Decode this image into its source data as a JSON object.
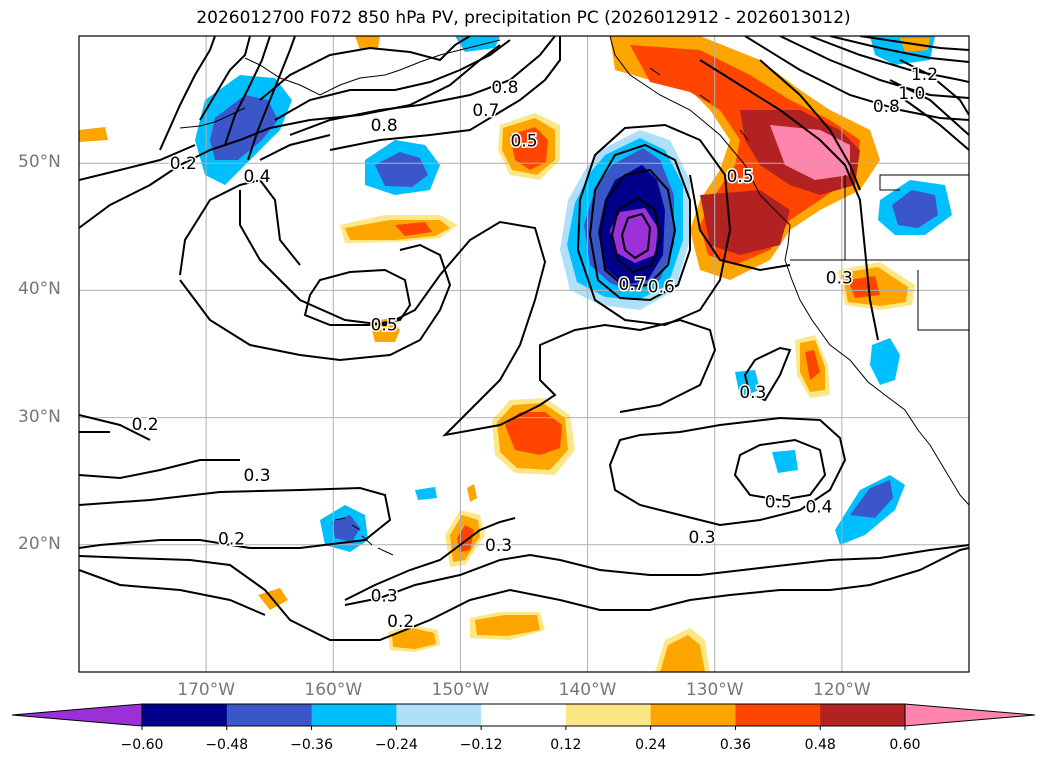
{
  "title": "2026012700 F072 850 hPa PV, precipitation PC (2026012912 - 2026013012)",
  "map": {
    "lon_range": [
      -180,
      -110
    ],
    "lat_range": [
      10,
      60
    ],
    "lat_labels": [
      {
        "lat": 50,
        "text": "50°N"
      },
      {
        "lat": 40,
        "text": "40°N"
      },
      {
        "lat": 30,
        "text": "30°N"
      },
      {
        "lat": 20,
        "text": "20°N"
      }
    ],
    "lon_labels": [
      {
        "lon": -170,
        "text": "170°W"
      },
      {
        "lon": -160,
        "text": "160°W"
      },
      {
        "lon": -150,
        "text": "150°W"
      },
      {
        "lon": -140,
        "text": "140°W"
      },
      {
        "lon": -130,
        "text": "130°W"
      },
      {
        "lon": -120,
        "text": "120°W"
      }
    ],
    "contour_labels": [
      {
        "text": "0.2",
        "lon": -171.8,
        "lat": 50.0
      },
      {
        "text": "0.4",
        "lon": -166.0,
        "lat": 49.0
      },
      {
        "text": "0.8",
        "lon": -156.0,
        "lat": 53.0
      },
      {
        "text": "0.8",
        "lon": -146.5,
        "lat": 56.0
      },
      {
        "text": "0.7",
        "lon": -148.0,
        "lat": 54.2
      },
      {
        "text": "0.5",
        "lon": -145.0,
        "lat": 51.8
      },
      {
        "text": "0.5",
        "lon": -156.0,
        "lat": 37.3
      },
      {
        "text": "0.2",
        "lon": -174.8,
        "lat": 29.5
      },
      {
        "text": "0.3",
        "lon": -166.0,
        "lat": 25.5
      },
      {
        "text": "0.2",
        "lon": -168.0,
        "lat": 20.5
      },
      {
        "text": "0.3",
        "lon": -156.0,
        "lat": 16.0
      },
      {
        "text": "0.2",
        "lon": -154.7,
        "lat": 14.0
      },
      {
        "text": "0.3",
        "lon": -147.0,
        "lat": 20.0
      },
      {
        "text": "0.3",
        "lon": -131.0,
        "lat": 20.6
      },
      {
        "text": "0.7",
        "lon": -136.5,
        "lat": 40.5
      },
      {
        "text": "0.6",
        "lon": -134.2,
        "lat": 40.3
      },
      {
        "text": "0.5",
        "lon": -128.0,
        "lat": 49.0
      },
      {
        "text": "0.3",
        "lon": -127.0,
        "lat": 32.0
      },
      {
        "text": "0.5",
        "lon": -125.0,
        "lat": 23.4
      },
      {
        "text": "0.4",
        "lon": -121.8,
        "lat": 23.0
      },
      {
        "text": "0.3",
        "lon": -120.2,
        "lat": 41.0
      },
      {
        "text": "0.8",
        "lon": -116.5,
        "lat": 54.5
      },
      {
        "text": "1.0",
        "lon": -114.5,
        "lat": 55.5
      },
      {
        "text": "1.2",
        "lon": -113.5,
        "lat": 57.0
      }
    ]
  },
  "colorbar": {
    "labels": [
      "−0.60",
      "−0.48",
      "−0.36",
      "−0.24",
      "−0.12",
      "0.12",
      "0.24",
      "0.36",
      "0.48",
      "0.60"
    ],
    "colors": [
      "#9b30d8",
      "#00008b",
      "#3b56c9",
      "#00bfff",
      "#aee0fa",
      "#ffffff",
      "#fce787",
      "#ffa500",
      "#ff4500",
      "#b22222",
      "#ff85ad"
    ]
  },
  "palette": {
    "purple": "#9b30d8",
    "navy": "#00008b",
    "royal": "#3b56c9",
    "sky": "#00bfff",
    "light_blue": "#aee0fa",
    "yellow": "#fce787",
    "orange": "#ffa500",
    "red_orange": "#ff4500",
    "firebrick": "#b22222",
    "pink": "#ff85ad"
  }
}
